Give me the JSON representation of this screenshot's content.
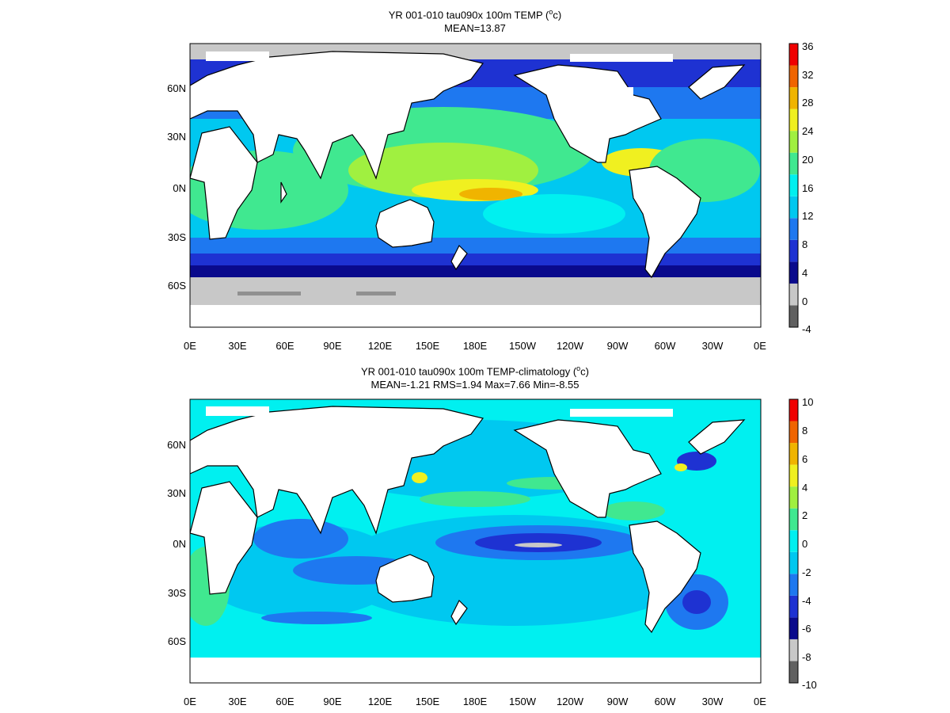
{
  "panels": [
    {
      "title_prefix": "YR 001-010 tau090x 100m TEMP (",
      "title_sup": "o",
      "title_suffix": "c)",
      "stats": "MEAN=13.87",
      "colorbar_ticks": [
        "36",
        "32",
        "28",
        "24",
        "20",
        "16",
        "12",
        "8",
        "4",
        "0",
        "-4"
      ],
      "x_ticks": [
        "0E",
        "30E",
        "60E",
        "90E",
        "120E",
        "150E",
        "180E",
        "150W",
        "120W",
        "90W",
        "60W",
        "30W",
        "0E"
      ],
      "y_ticks": [
        "60N",
        "30N",
        "0N",
        "30S",
        "60S"
      ]
    },
    {
      "title_prefix": "YR 001-010 tau090x 100m TEMP-climatology (",
      "title_sup": "o",
      "title_suffix": "c)",
      "stats": "MEAN=-1.21   RMS=1.94  Max=7.66  Min=-8.55",
      "colorbar_ticks": [
        "10",
        "8",
        "6",
        "4",
        "2",
        "0",
        "-2",
        "-4",
        "-6",
        "-8",
        "-10"
      ],
      "x_ticks": [
        "0E",
        "30E",
        "60E",
        "90E",
        "120E",
        "150E",
        "180E",
        "150W",
        "120W",
        "90W",
        "60W",
        "30W",
        "0E"
      ],
      "y_ticks": [
        "60N",
        "30N",
        "0N",
        "30S",
        "60S"
      ]
    }
  ],
  "colorbar_colors": [
    "#606060",
    "#c8c8c8",
    "#0a0a8c",
    "#1e32d2",
    "#1e78f0",
    "#00c8f0",
    "#00f0f0",
    "#40e890",
    "#a0f040",
    "#f0f020",
    "#f0b400",
    "#f06400",
    "#f00000"
  ]
}
